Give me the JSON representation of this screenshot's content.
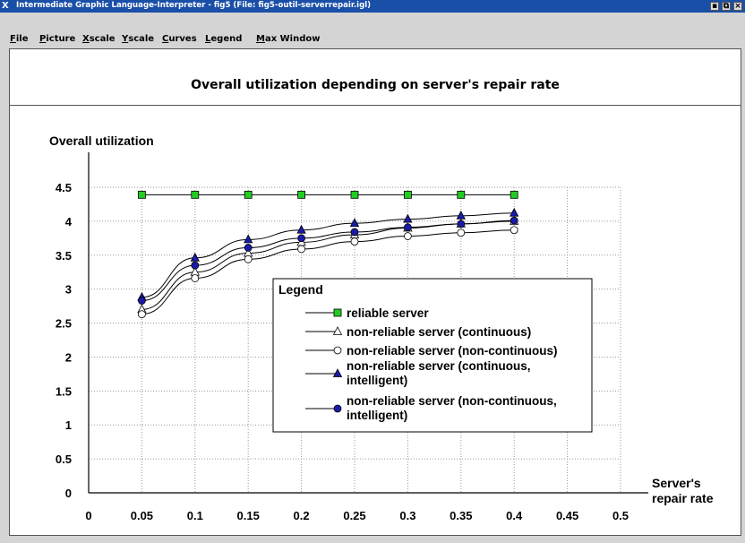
{
  "window": {
    "title": "Intermediate Graphic Language-Interpreter - fig5 (File: fig5-outil-serverrepair.igl)",
    "logo": "X",
    "controls": [
      "minimize-icon",
      "restore-icon",
      "close-icon"
    ]
  },
  "menu": {
    "items": [
      {
        "label": "File",
        "underline": "F",
        "rest": "ile"
      },
      {
        "label": "Picture",
        "underline": "P",
        "rest": "icture"
      },
      {
        "label": "Xscale",
        "underline": "X",
        "rest": "scale"
      },
      {
        "label": "Yscale",
        "underline": "Y",
        "rest": "scale"
      },
      {
        "label": "Curves",
        "underline": "C",
        "rest": "urves"
      },
      {
        "label": "Legend",
        "underline": "L",
        "rest": "egend"
      },
      {
        "label": "Max Window",
        "underline": "M",
        "rest": "ax Window"
      }
    ]
  },
  "chart_data": {
    "type": "line",
    "title": "Overall utilization depending on server's repair rate",
    "ylabel": "Overall utilization",
    "xlabel": "Server's repair rate",
    "xlim": [
      0,
      0.5
    ],
    "ylim": [
      0,
      4.5
    ],
    "xticks": [
      "0",
      "0.05",
      "0.1",
      "0.15",
      "0.2",
      "0.25",
      "0.3",
      "0.35",
      "0.4",
      "0.45",
      "0.5"
    ],
    "yticks": [
      "0",
      "0.5",
      "1",
      "1.5",
      "2",
      "2.5",
      "3",
      "3.5",
      "4",
      "4.5"
    ],
    "grid": true,
    "legend_title": "Legend",
    "legend_position": "center-right",
    "x": [
      0.05,
      0.1,
      0.15,
      0.2,
      0.25,
      0.3,
      0.35,
      0.4
    ],
    "series": [
      {
        "name": "reliable server",
        "marker": "square",
        "color": "#22cc22",
        "values": [
          4.39,
          4.39,
          4.39,
          4.39,
          4.39,
          4.39,
          4.39,
          4.39
        ]
      },
      {
        "name": "non-reliable server (continuous)",
        "marker": "triangle-open",
        "color": "#ffffff",
        "values": [
          2.7,
          3.25,
          3.53,
          3.69,
          3.8,
          3.9,
          3.96,
          4.0
        ]
      },
      {
        "name": "non-reliable server (non-continuous)",
        "marker": "circle-open",
        "color": "#ffffff",
        "values": [
          2.63,
          3.16,
          3.44,
          3.59,
          3.7,
          3.78,
          3.83,
          3.87
        ]
      },
      {
        "name": "non-reliable server (continuous, intelligent)",
        "marker": "triangle",
        "color": "#1a1aaa",
        "values": [
          2.88,
          3.46,
          3.73,
          3.87,
          3.97,
          4.03,
          4.08,
          4.12
        ]
      },
      {
        "name": "non-reliable server (non-continuous, intelligent)",
        "marker": "circle",
        "color": "#1a1aaa",
        "values": [
          2.83,
          3.35,
          3.61,
          3.75,
          3.84,
          3.91,
          3.96,
          4.01
        ]
      }
    ],
    "legend_lines": [
      [
        "reliable server"
      ],
      [
        "non-reliable server (continuous)"
      ],
      [
        "non-reliable server (non-continuous)"
      ],
      [
        "non-reliable server (continuous,",
        "intelligent)"
      ],
      [
        "non-reliable server (non-continuous,",
        "intelligent)"
      ]
    ]
  }
}
